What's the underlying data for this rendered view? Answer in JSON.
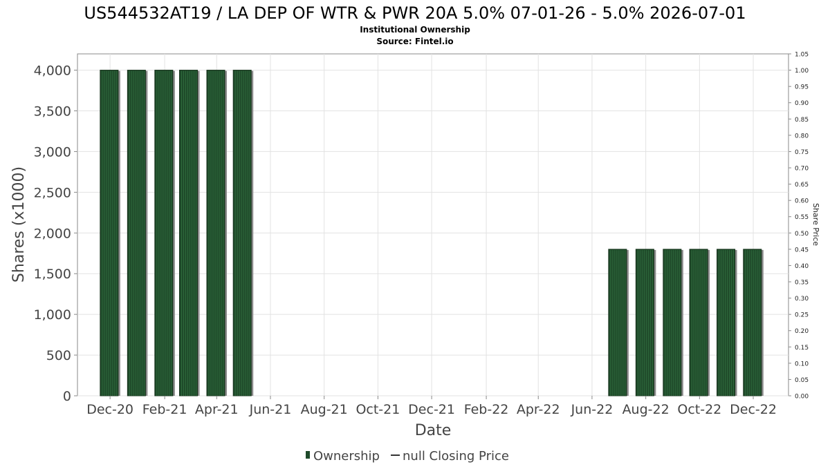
{
  "chart_data": {
    "type": "bar",
    "title": "US544532AT19 / LA DEP OF WTR & PWR 20A 5.0% 07-01-26 - 5.0% 2026-07-01",
    "subtitle": "Institutional Ownership",
    "source": "Source: Fintel.io",
    "xlabel": "Date",
    "ylabel": "Shares (x1000)",
    "y2label": "Share Price",
    "ylim": [
      0,
      4200
    ],
    "y2lim": [
      0,
      1.05
    ],
    "yticks": [
      "0",
      "500",
      "1,000",
      "1,500",
      "2,000",
      "2,500",
      "3,000",
      "3,500",
      "4,000"
    ],
    "ytick_values": [
      0,
      500,
      1000,
      1500,
      2000,
      2500,
      3000,
      3500,
      4000
    ],
    "y2ticks": [
      "0.00",
      "0.05",
      "0.10",
      "0.15",
      "0.20",
      "0.25",
      "0.30",
      "0.35",
      "0.40",
      "0.45",
      "0.50",
      "0.55",
      "0.60",
      "0.65",
      "0.70",
      "0.75",
      "0.80",
      "0.85",
      "0.90",
      "0.95",
      "1.00",
      "1.05"
    ],
    "xticks": [
      "Dec-20",
      "Feb-21",
      "Apr-21",
      "Jun-21",
      "Aug-21",
      "Oct-21",
      "Dec-21",
      "Feb-22",
      "Apr-22",
      "Jun-22",
      "Aug-22",
      "Oct-22",
      "Dec-22"
    ],
    "xtick_dates": [
      "2020-12-01",
      "2021-02-01",
      "2021-04-01",
      "2021-06-01",
      "2021-08-01",
      "2021-10-01",
      "2021-12-01",
      "2022-02-01",
      "2022-04-01",
      "2022-06-01",
      "2022-08-01",
      "2022-10-01",
      "2022-12-01"
    ],
    "xlim": [
      "2020-10-25",
      "2023-01-10"
    ],
    "series": [
      {
        "name": "Ownership",
        "color": "#1f4a2a",
        "x": [
          "2020-11-30",
          "2020-12-31",
          "2021-01-31",
          "2021-02-28",
          "2021-03-31",
          "2021-04-30",
          "2022-06-30",
          "2022-07-31",
          "2022-08-31",
          "2022-09-30",
          "2022-10-31",
          "2022-11-30"
        ],
        "values": [
          4000,
          4000,
          4000,
          4000,
          4000,
          4000,
          1800,
          1800,
          1800,
          1800,
          1800,
          1800
        ]
      }
    ],
    "legend": [
      {
        "label": "Ownership",
        "marker": "bar",
        "color": "#1f4a2a"
      },
      {
        "label": "null Closing Price",
        "marker": "line",
        "color": "#333333"
      }
    ],
    "legend_position": "bottom-center",
    "grid": true
  }
}
